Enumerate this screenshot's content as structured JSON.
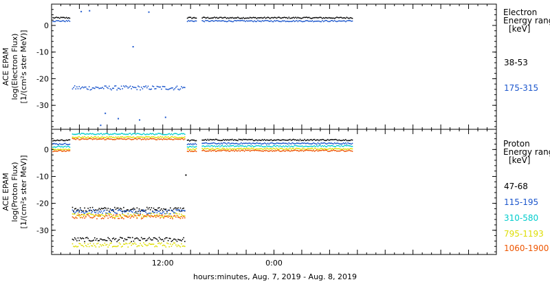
{
  "x_axis_title": "hours:minutes, Aug.  7, 2019 - Aug.  8, 2019",
  "chart_data": [
    {
      "type": "scatter",
      "ylabel_lines": [
        "ACE EPAM",
        "log(Electron Flux)",
        "[1/(cm²s ster MeV)]"
      ],
      "legend_title_lines": [
        "Electron",
        "Energy range",
        "[keV]"
      ],
      "yticks": [
        0,
        -10,
        -20,
        -30
      ],
      "ylim": [
        -39,
        8
      ],
      "xticks": [
        {
          "hour": 12,
          "label": "12:00"
        },
        {
          "hour": 24,
          "label": "0:00"
        }
      ],
      "xlim": [
        0,
        48
      ],
      "series": [
        {
          "name": "38-53",
          "color": "#000000",
          "segments": [
            {
              "x0": 0.1,
              "x1": 2.0,
              "y": 2.8
            },
            {
              "x0": 14.6,
              "x1": 15.6,
              "y": 2.8
            },
            {
              "x0": 16.2,
              "x1": 32.5,
              "y": 2.8
            }
          ]
        },
        {
          "name": "175-315",
          "color": "#1a55cc",
          "segments": [
            {
              "x0": 0.1,
              "x1": 2.0,
              "y": 1.6
            },
            {
              "x0": 2.2,
              "x1": 14.4,
              "y": -23.5
            },
            {
              "x0": 14.6,
              "x1": 15.6,
              "y": 1.6
            },
            {
              "x0": 16.2,
              "x1": 32.5,
              "y": 1.6
            }
          ],
          "isolated": [
            {
              "x": 3.2,
              "y": 5.2
            },
            {
              "x": 4.1,
              "y": 5.5
            },
            {
              "x": 10.5,
              "y": 5.0
            },
            {
              "x": 8.8,
              "y": -8.0
            },
            {
              "x": 5.8,
              "y": -33.0
            },
            {
              "x": 5.3,
              "y": -37.5
            },
            {
              "x": 7.2,
              "y": -35.0
            },
            {
              "x": 9.5,
              "y": -35.5
            },
            {
              "x": 12.3,
              "y": -34.5
            }
          ]
        }
      ]
    },
    {
      "type": "scatter",
      "ylabel_lines": [
        "ACE EPAM",
        "log(Proton Flux)",
        "[1/(cm²s ster MeV)]"
      ],
      "legend_title_lines": [
        "Proton",
        "Energy range",
        "[keV]"
      ],
      "yticks": [
        0,
        -10,
        -20,
        -30
      ],
      "ylim": [
        -39,
        7.5
      ],
      "xticks": [
        {
          "hour": 12,
          "label": "12:00"
        },
        {
          "hour": 24,
          "label": "0:00"
        }
      ],
      "xlim": [
        0,
        48
      ],
      "series": [
        {
          "name": "47-68",
          "color": "#000000",
          "segments": [
            {
              "x0": 0.1,
              "x1": 2.0,
              "y": 3.3
            },
            {
              "x0": 2.2,
              "x1": 14.4,
              "y": -22.3
            },
            {
              "x0": 2.2,
              "x1": 14.4,
              "y": -33.5
            },
            {
              "x0": 14.6,
              "x1": 15.6,
              "y": 3.3
            },
            {
              "x0": 16.2,
              "x1": 32.5,
              "y": 3.5
            }
          ],
          "isolated": [
            {
              "x": 14.5,
              "y": -9.5
            }
          ]
        },
        {
          "name": "115-195",
          "color": "#1a55cc",
          "segments": [
            {
              "x0": 0.1,
              "x1": 2.0,
              "y": 2.0
            },
            {
              "x0": 2.2,
              "x1": 14.4,
              "y": -23.2
            },
            {
              "x0": 14.6,
              "x1": 15.6,
              "y": 2.0
            },
            {
              "x0": 16.2,
              "x1": 32.5,
              "y": 2.2
            }
          ]
        },
        {
          "name": "310-580",
          "color": "#00cccc",
          "segments": [
            {
              "x0": 0.1,
              "x1": 2.0,
              "y": 1.0
            },
            {
              "x0": 2.2,
              "x1": 14.4,
              "y": 5.7
            },
            {
              "x0": 14.6,
              "x1": 15.6,
              "y": 1.0
            },
            {
              "x0": 16.2,
              "x1": 32.5,
              "y": 1.2
            }
          ]
        },
        {
          "name": "795-1193",
          "color": "#dddd00",
          "segments": [
            {
              "x0": 0.1,
              "x1": 2.0,
              "y": 0.0
            },
            {
              "x0": 2.2,
              "x1": 14.4,
              "y": 4.5
            },
            {
              "x0": 2.2,
              "x1": 14.4,
              "y": -24.5
            },
            {
              "x0": 2.2,
              "x1": 14.4,
              "y": -35.5
            },
            {
              "x0": 14.6,
              "x1": 15.6,
              "y": 0.0
            },
            {
              "x0": 16.2,
              "x1": 32.5,
              "y": 0.2
            }
          ]
        },
        {
          "name": "1060-1900",
          "color": "#ee5500",
          "segments": [
            {
              "x0": 0.1,
              "x1": 2.0,
              "y": -0.6
            },
            {
              "x0": 2.2,
              "x1": 14.4,
              "y": 3.8
            },
            {
              "x0": 2.2,
              "x1": 14.4,
              "y": -25.0
            },
            {
              "x0": 14.6,
              "x1": 15.6,
              "y": -0.6
            },
            {
              "x0": 16.2,
              "x1": 32.5,
              "y": -0.5
            }
          ]
        }
      ]
    }
  ]
}
